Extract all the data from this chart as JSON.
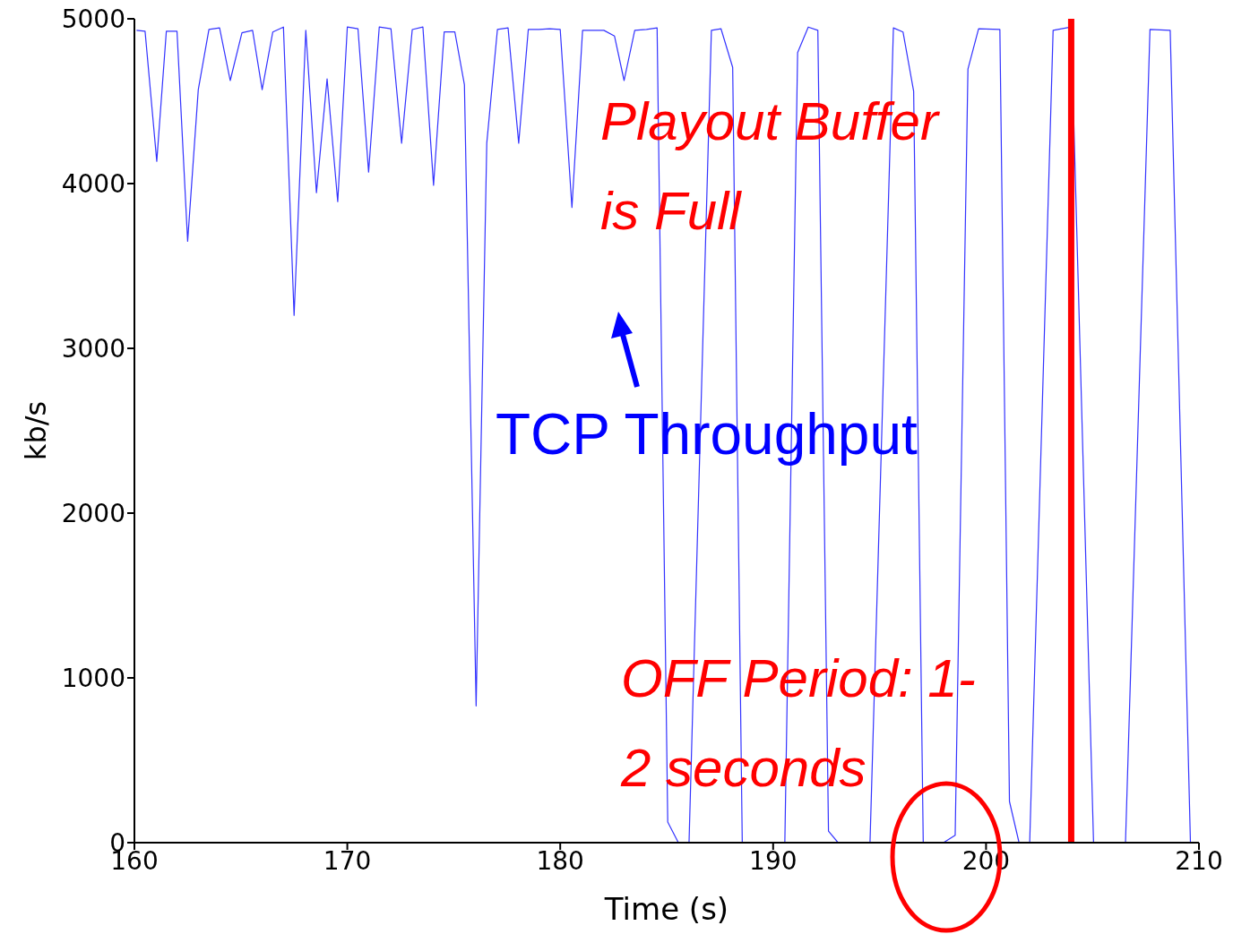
{
  "chart_data": {
    "type": "line",
    "xlabel": "Time (s)",
    "ylabel": "kb/s",
    "xlim": [
      160,
      210
    ],
    "xticks": [
      160,
      170,
      180,
      190,
      200,
      210
    ],
    "ylim": [
      0,
      5000
    ],
    "yticks": [
      0,
      1000,
      2000,
      3000,
      4000,
      5000
    ],
    "marker": "none",
    "line_style": "solid",
    "series": [
      {
        "color": "#3333ff",
        "x": [
          160.1,
          160.5,
          161.05,
          161.5,
          162.0,
          162.5,
          163.0,
          163.5,
          164.0,
          164.5,
          165.05,
          165.55,
          166.0,
          166.5,
          167.0,
          167.5,
          168.05,
          168.55,
          169.05,
          169.55,
          170.0,
          170.5,
          171.0,
          171.5,
          172.05,
          172.55,
          173.05,
          173.55,
          174.05,
          174.55,
          175.05,
          175.5,
          176.05,
          176.55,
          177.05,
          177.55,
          178.05,
          178.5,
          179.0,
          179.5,
          180.0,
          180.55,
          181.05,
          181.55,
          182.05,
          182.55,
          183.0,
          183.5,
          184.05,
          184.55,
          185.05,
          185.55,
          186.05,
          187.1,
          187.55,
          188.1,
          188.55,
          190.55,
          191.15,
          191.65,
          192.1,
          192.6,
          193.05,
          194.55,
          195.65,
          196.1,
          196.6,
          197.05,
          198.0,
          198.55,
          199.15,
          199.65,
          200.65,
          201.1,
          201.55,
          202.05,
          203.15,
          204.0,
          205.05,
          206.55,
          207.7,
          208.65,
          209.6
        ],
        "values": [
          4930,
          4925,
          4135,
          4925,
          4925,
          3650,
          4570,
          4935,
          4945,
          4625,
          4915,
          4930,
          4570,
          4920,
          4950,
          3200,
          4930,
          3945,
          4635,
          3890,
          4950,
          4940,
          4070,
          4950,
          4940,
          4245,
          4935,
          4950,
          3990,
          4920,
          4920,
          4600,
          830,
          4245,
          4935,
          4945,
          4245,
          4935,
          4935,
          4940,
          4935,
          3855,
          4930,
          4930,
          4930,
          4895,
          4625,
          4930,
          4935,
          4945,
          125,
          0,
          0,
          4930,
          4940,
          4705,
          0,
          0,
          4795,
          4950,
          4930,
          70,
          0,
          0,
          4945,
          4920,
          4560,
          0,
          0,
          45,
          4695,
          4940,
          4935,
          250,
          0,
          0,
          4930,
          4950,
          0,
          0,
          4935,
          4930,
          0
        ]
      }
    ],
    "ref_lines": [
      {
        "axis": "x",
        "value": 204,
        "color": "#ff0000"
      }
    ],
    "annotations": [
      "Playout Buffer is Full",
      "TCP Throughput",
      "OFF Period: 1-2 seconds"
    ]
  }
}
